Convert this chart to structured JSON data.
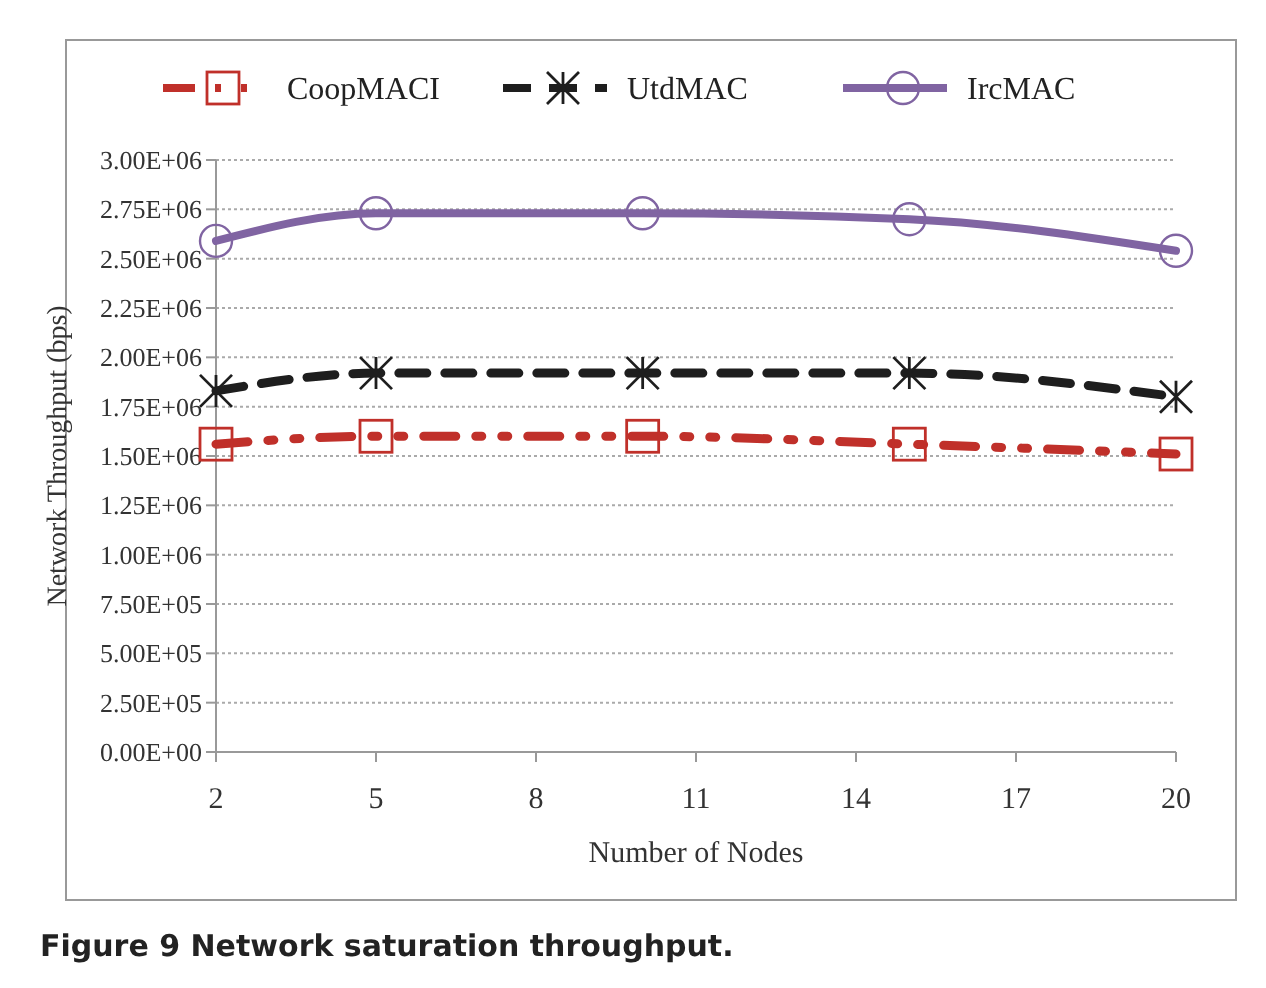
{
  "chart_data": {
    "type": "line",
    "xlabel": "Number of Nodes",
    "ylabel": "Network Throughput (bps)",
    "annotations": [
      "Figure 9 Network saturation throughput."
    ],
    "x": [
      2,
      5,
      10,
      15,
      20
    ],
    "xlim": [
      2,
      20
    ],
    "xticks": [
      2,
      5,
      8,
      11,
      14,
      17,
      20
    ],
    "ylim": [
      0,
      3000000
    ],
    "yticks": [
      {
        "value": 0,
        "label": "0.00E+00"
      },
      {
        "value": 250000,
        "label": "2.50E+05"
      },
      {
        "value": 500000,
        "label": "5.00E+05"
      },
      {
        "value": 750000,
        "label": "7.50E+05"
      },
      {
        "value": 1000000,
        "label": "1.00E+06"
      },
      {
        "value": 1250000,
        "label": "1.25E+06"
      },
      {
        "value": 1500000,
        "label": "1.50E+06"
      },
      {
        "value": 1750000,
        "label": "1.75E+06"
      },
      {
        "value": 2000000,
        "label": "2.00E+06"
      },
      {
        "value": 2250000,
        "label": "2.25E+06"
      },
      {
        "value": 2500000,
        "label": "2.50E+06"
      },
      {
        "value": 2750000,
        "label": "2.75E+06"
      },
      {
        "value": 3000000,
        "label": "3.00E+06"
      }
    ],
    "grid": "y",
    "legend": "top",
    "series": [
      {
        "name": "CoopMACI",
        "color": "#c0302a",
        "marker": "square",
        "line_style": "dotted",
        "values": [
          1560000,
          1600000,
          1600000,
          1560000,
          1510000
        ]
      },
      {
        "name": "UtdMAC",
        "color": "#1e1e1e",
        "marker": "cross",
        "line_style": "dashed",
        "values": [
          1830000,
          1920000,
          1920000,
          1920000,
          1800000
        ]
      },
      {
        "name": "IrcMAC",
        "color": "#8064a2",
        "marker": "circle",
        "line_style": "solid",
        "values": [
          2590000,
          2730000,
          2730000,
          2700000,
          2540000
        ]
      }
    ]
  }
}
